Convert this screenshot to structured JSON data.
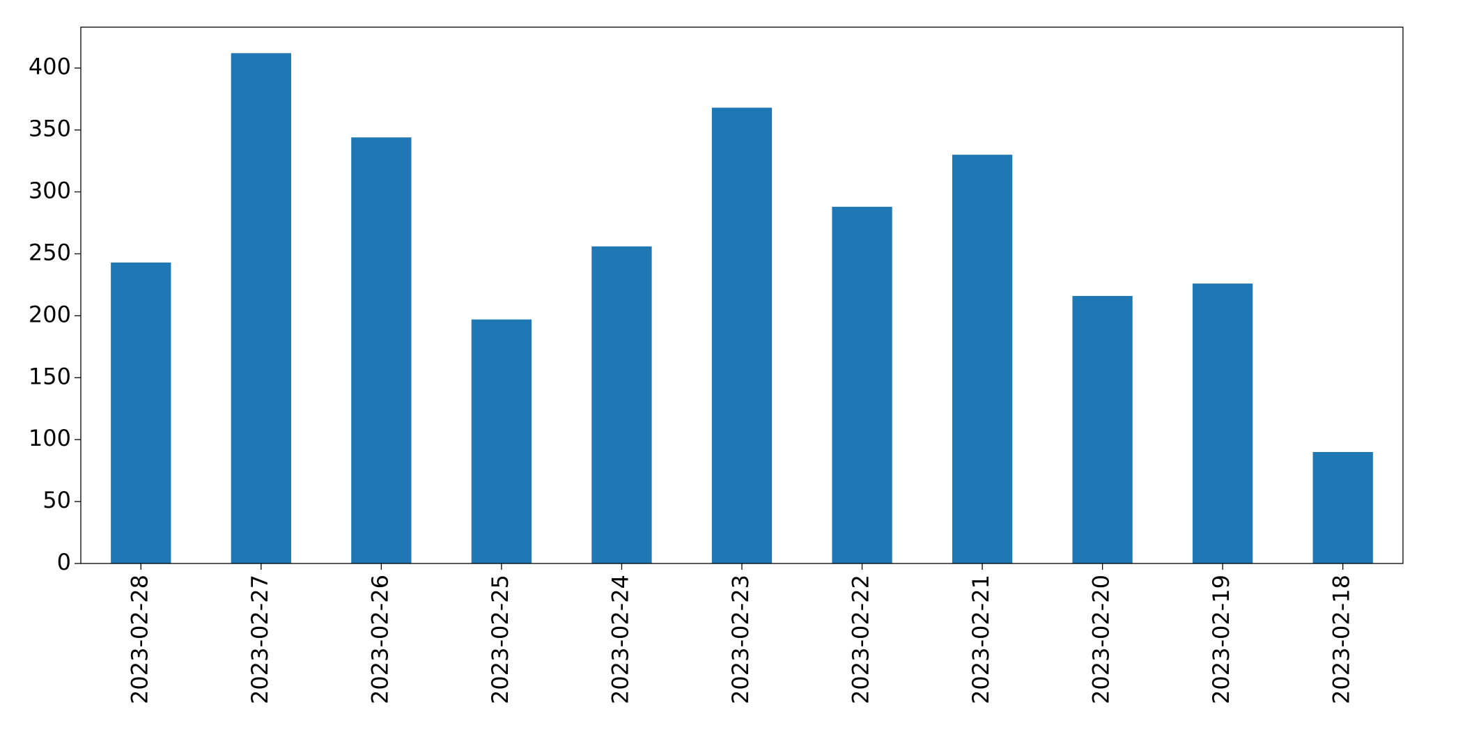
{
  "chart_data": {
    "type": "bar",
    "categories": [
      "2023-02-28",
      "2023-02-27",
      "2023-02-26",
      "2023-02-25",
      "2023-02-24",
      "2023-02-23",
      "2023-02-22",
      "2023-02-21",
      "2023-02-20",
      "2023-02-19",
      "2023-02-18"
    ],
    "values": [
      243,
      412,
      344,
      197,
      256,
      368,
      288,
      330,
      216,
      226,
      90
    ],
    "color": "#1f77b4",
    "ylim": [
      0,
      433
    ],
    "yticks": [
      0,
      50,
      100,
      150,
      200,
      250,
      300,
      350,
      400
    ],
    "grid": false
  }
}
